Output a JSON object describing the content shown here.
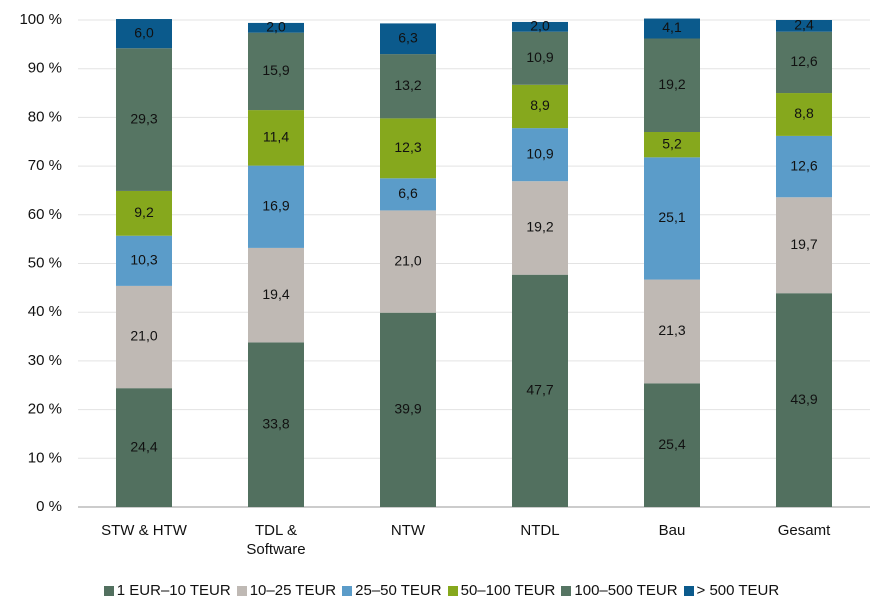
{
  "chart_data": {
    "type": "stacked_bar",
    "categories": [
      "STW & HTW",
      "TDL & Software",
      "NTW",
      "NTDL",
      "Bau",
      "Gesamt"
    ],
    "series": [
      {
        "name": "1 EUR–10 TEUR",
        "color": "#52705f",
        "values": [
          24.4,
          33.8,
          39.9,
          47.7,
          25.4,
          43.9
        ],
        "value_labels": [
          "24,4",
          "33,8",
          "39,9",
          "47,7",
          "25,4",
          "43,9"
        ]
      },
      {
        "name": "10–25 TEUR",
        "color": "#bfb9b4",
        "values": [
          21.0,
          19.4,
          21.0,
          19.2,
          21.3,
          19.7
        ],
        "value_labels": [
          "21,0",
          "19,4",
          "21,0",
          "19,2",
          "21,3",
          "19,7"
        ]
      },
      {
        "name": "25–50 TEUR",
        "color": "#5b9cc9",
        "values": [
          10.3,
          16.9,
          6.6,
          10.9,
          25.1,
          12.6
        ],
        "value_labels": [
          "10,3",
          "16,9",
          "6,6",
          "10,9",
          "25,1",
          "12,6"
        ]
      },
      {
        "name": "50–100 TEUR",
        "color": "#86a81d",
        "values": [
          9.2,
          11.4,
          12.3,
          8.9,
          5.2,
          8.8
        ],
        "value_labels": [
          "9,2",
          "11,4",
          "12,3",
          "8,9",
          "5,2",
          "8,8"
        ]
      },
      {
        "name": "100–500 TEUR",
        "color": "#567563",
        "values": [
          29.3,
          15.9,
          13.2,
          10.9,
          19.2,
          12.6
        ],
        "value_labels": [
          "29,3",
          "15,9",
          "13,2",
          "10,9",
          "19,2",
          "12,6"
        ]
      },
      {
        "name": "> 500 TEUR",
        "color": "#0b5a8c",
        "values": [
          6.0,
          2.0,
          6.3,
          2.0,
          4.1,
          2.4
        ],
        "value_labels": [
          "6,0",
          "2,0",
          "6,3",
          "2,0",
          "4,1",
          "2,4"
        ]
      }
    ],
    "ylim": [
      0,
      100
    ],
    "yticks": [
      {
        "value": 0,
        "label": "0 %"
      },
      {
        "value": 10,
        "label": "10 %"
      },
      {
        "value": 20,
        "label": "20 %"
      },
      {
        "value": 30,
        "label": "30 %"
      },
      {
        "value": 40,
        "label": "40 %"
      },
      {
        "value": 50,
        "label": "50 %"
      },
      {
        "value": 60,
        "label": "60 %"
      },
      {
        "value": 70,
        "label": "70 %"
      },
      {
        "value": 80,
        "label": "80 %"
      },
      {
        "value": 90,
        "label": "90 %"
      },
      {
        "value": 100,
        "label": "100 %"
      }
    ],
    "grid": true,
    "legend": "bottom"
  }
}
